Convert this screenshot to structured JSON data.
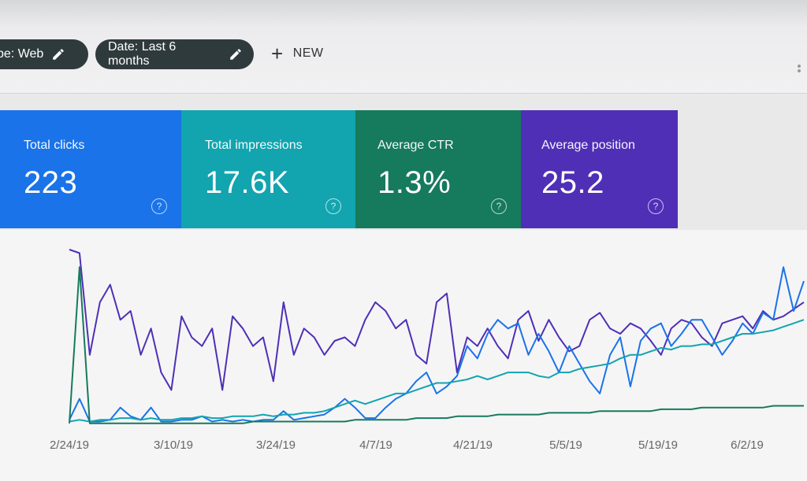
{
  "filters": {
    "type_chip": "ype: Web",
    "date_chip": "Date: Last 6 months",
    "new_label": "NEW"
  },
  "metrics": [
    {
      "label": "Total clicks",
      "value": "223",
      "color": "#1a73e8"
    },
    {
      "label": "Total impressions",
      "value": "17.6K",
      "color": "#12a4af"
    },
    {
      "label": "Average CTR",
      "value": "1.3%",
      "color": "#167a5c"
    },
    {
      "label": "Average position",
      "value": "25.2",
      "color": "#4f2fb6"
    }
  ],
  "chart_data": {
    "type": "line",
    "title": "",
    "xlabel": "",
    "ylabel": "",
    "grid": false,
    "x_ticks": [
      "2/24/19",
      "3/10/19",
      "3/24/19",
      "4/7/19",
      "4/21/19",
      "5/5/19",
      "5/19/19",
      "6/2/19"
    ],
    "x_range": [
      "2/24/19",
      "6/12/19"
    ],
    "ylim": [
      0,
      100
    ],
    "series": [
      {
        "color": "#4f2fb6",
        "values": [
          100,
          98,
          40,
          70,
          80,
          60,
          65,
          40,
          55,
          30,
          20,
          62,
          50,
          45,
          55,
          20,
          62,
          55,
          45,
          50,
          25,
          70,
          40,
          55,
          50,
          40,
          48,
          50,
          45,
          60,
          70,
          65,
          55,
          60,
          40,
          35,
          70,
          75,
          30,
          50,
          45,
          55,
          45,
          38,
          60,
          65,
          48,
          60,
          50,
          42,
          45,
          60,
          64,
          55,
          52,
          58,
          55,
          48,
          40,
          55,
          60,
          58,
          50,
          45,
          58,
          60,
          62,
          55,
          65,
          60,
          62,
          66,
          70
        ]
      },
      {
        "color": "#1a73e8",
        "values": [
          3,
          15,
          2,
          2,
          3,
          10,
          5,
          3,
          10,
          2,
          2,
          3,
          3,
          5,
          2,
          3,
          2,
          3,
          2,
          3,
          3,
          8,
          3,
          4,
          5,
          6,
          10,
          15,
          10,
          4,
          4,
          10,
          15,
          18,
          25,
          30,
          18,
          22,
          28,
          45,
          38,
          52,
          60,
          55,
          58,
          40,
          52,
          42,
          30,
          45,
          35,
          25,
          18,
          40,
          50,
          22,
          48,
          55,
          58,
          45,
          52,
          60,
          60,
          50,
          40,
          48,
          58,
          52,
          64,
          60,
          90,
          65,
          82
        ]
      },
      {
        "color": "#12a4af",
        "values": [
          2,
          3,
          2,
          3,
          3,
          4,
          4,
          3,
          4,
          3,
          3,
          4,
          4,
          5,
          4,
          4,
          5,
          5,
          5,
          6,
          5,
          6,
          6,
          7,
          7,
          8,
          10,
          12,
          14,
          12,
          14,
          16,
          18,
          18,
          20,
          22,
          24,
          24,
          25,
          26,
          28,
          26,
          28,
          30,
          30,
          30,
          28,
          27,
          30,
          30,
          32,
          33,
          34,
          35,
          38,
          40,
          40,
          42,
          44,
          43,
          45,
          45,
          46,
          46,
          48,
          50,
          52,
          52,
          53,
          54,
          56,
          58,
          60
        ]
      },
      {
        "color": "#167a5c",
        "values": [
          1,
          90,
          1,
          1,
          1,
          1,
          1,
          1,
          1,
          1,
          1,
          1,
          1,
          1,
          1,
          1,
          1,
          1,
          2,
          2,
          2,
          2,
          2,
          2,
          2,
          2,
          2,
          2,
          3,
          3,
          3,
          3,
          3,
          3,
          4,
          4,
          4,
          4,
          5,
          5,
          5,
          5,
          6,
          6,
          6,
          6,
          6,
          7,
          7,
          7,
          7,
          7,
          8,
          8,
          8,
          8,
          8,
          8,
          9,
          9,
          9,
          9,
          10,
          10,
          10,
          10,
          10,
          10,
          10,
          11,
          11,
          11,
          11
        ]
      }
    ]
  }
}
